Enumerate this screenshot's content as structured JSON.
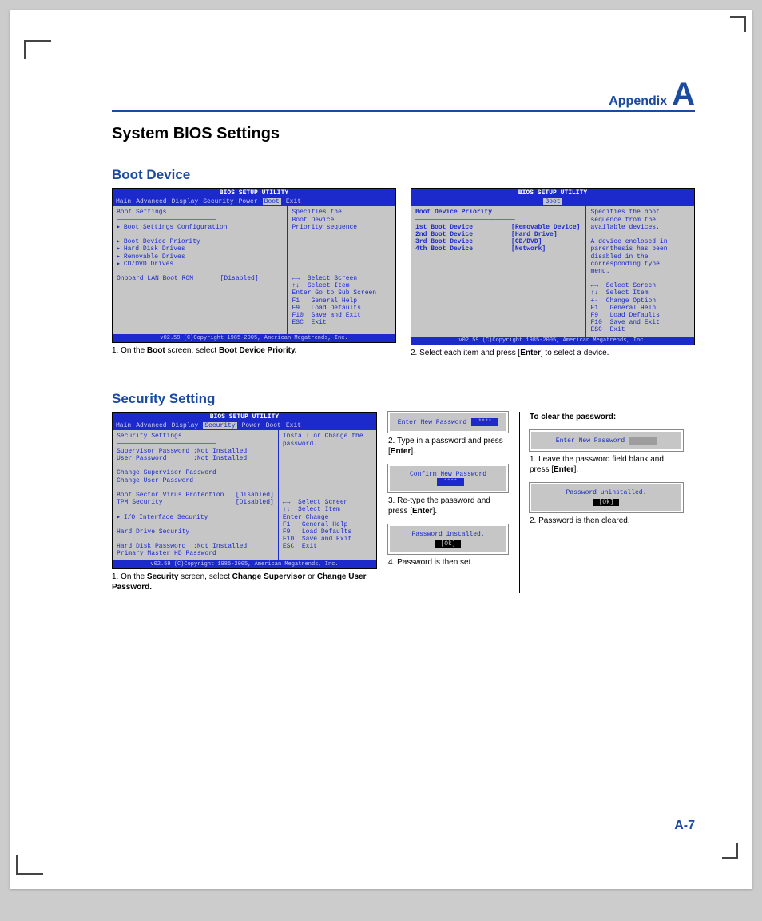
{
  "colors": {
    "accent": "#1b4aa0",
    "bios_blue": "#1c2acb",
    "bios_gray": "#c6c6c6",
    "page_bg": "#ffffff",
    "body_bg": "#cccccc"
  },
  "header": {
    "appendix": "Appendix",
    "letter": "A"
  },
  "title": "System BIOS Settings",
  "page_number": "A-7",
  "boot": {
    "heading": "Boot Device",
    "bios_title": "BIOS SETUP UTILITY",
    "menus": [
      "Main",
      "Advanced",
      "Display",
      "Security",
      "Power",
      "Boot",
      "Exit"
    ],
    "footer": "v02.59 (C)Copyright 1985-2005, American Megatrends, Inc.",
    "shot1_left": "Boot Settings\n──────────────────────────\n▸ Boot Settings Configuration\n\n▸ Boot Device Priority\n▸ Hard Disk Drives\n▸ Removable Drives\n▸ CD/DVD Drives\n\nOnboard LAN Boot ROM       [Disabled]",
    "shot1_right": "Specifies the\nBoot Device\nPriority sequence.\n\n\n\n\n\n\n←→  Select Screen\n↑↓  Select Item\nEnter Go to Sub Screen\nF1   General Help\nF9   Load Defaults\nF10  Save and Exit\nESC  Exit",
    "shot2_left": "Boot Device Priority\n──────────────────────────\n1st Boot Device          [Removable Device]\n2nd Boot Device          [Hard Drive]\n3rd Boot Device          [CD/DVD]\n4th Boot Device          [Network]",
    "shot2_right": "Specifies the boot\nsequence from the\navailable devices.\n\nA device enclosed in\nparenthesis has been\ndisabled in the\ncorresponding type\nmenu.\n\n←→  Select Screen\n↑↓  Select Item\n+-  Change Option\nF1   General Help\nF9   Load Defaults\nF10  Save and Exit\nESC  Exit",
    "cap1_a": "1. On the ",
    "cap1_b": "Boot",
    "cap1_c": " screen, select ",
    "cap1_d": "Boot Device Priority.",
    "cap2_a": "2. Select each item and press [",
    "cap2_b": "Enter",
    "cap2_c": "] to select a device."
  },
  "sec": {
    "heading": "Security Setting",
    "menus": [
      "Main",
      "Advanced",
      "Display",
      "Security",
      "Power",
      "Boot",
      "Exit"
    ],
    "left": "Security Settings\n──────────────────────────\nSupervisor Password :Not Installed\nUser Password       :Not Installed\n\nChange Supervisor Password\nChange User Password\n\nBoot Sector Virus Protection   [Disabled]\nTPM Security                   [Disabled]\n\n▸ I/O Interface Security\n──────────────────────────\nHard Drive Security\n\nHard Disk Password  :Not Installed\nPrimary Master HD Password",
    "right": "Install or Change the\npassword.\n\n\n\n\n\n\n\n←→  Select Screen\n↑↓  Select Item\nEnter Change\nF1   General Help\nF9   Load Defaults\nF10  Save and Exit\nESC  Exit",
    "cap_a": "1. On the ",
    "cap_b": "Security",
    "cap_c": " screen, select ",
    "cap_d": "Change Supervisor",
    "cap_e": " or ",
    "cap_f": "Change User Password.",
    "d_enter": "Enter New Password",
    "d_confirm": "Confirm New Password",
    "d_installed": "Password installed.",
    "d_uninstalled": "Password uninstalled.",
    "d_ok": "[Ok]",
    "step2_a": "2. Type in a password and press [",
    "step2_b": "Enter",
    "step2_c": "].",
    "step3_a": "3. Re-type the password and press [",
    "step3_b": "Enter",
    "step3_c": "].",
    "step4": "4. Password is then set.",
    "clear_hdr": "To clear the password:",
    "clear1_a": "1. Leave the password field blank and press [",
    "clear1_b": "Enter",
    "clear1_c": "].",
    "clear2": "2. Password is then cleared."
  }
}
